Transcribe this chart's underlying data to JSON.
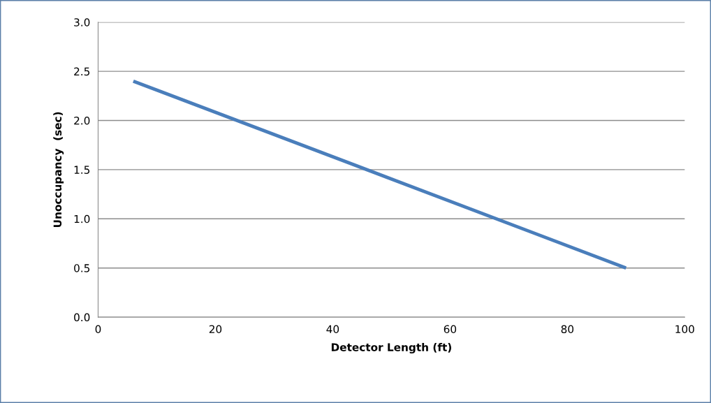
{
  "chart_data": {
    "type": "line",
    "xlabel": "Detector Length (ft)",
    "ylabel": "Unoccupancy  (sec)",
    "x": [
      6,
      90
    ],
    "series": [
      {
        "color": "#4a7ebb",
        "values": [
          2.4,
          0.5
        ]
      }
    ],
    "xlim": [
      0,
      100
    ],
    "xticks": [
      0,
      20,
      40,
      60,
      80,
      100
    ],
    "ylim": [
      0,
      3
    ],
    "yticks": [
      {
        "value": 0,
        "label": "0.0"
      },
      {
        "value": 0.5,
        "label": "0.5"
      },
      {
        "value": 1,
        "label": "1.0"
      },
      {
        "value": 1.5,
        "label": "1.5"
      },
      {
        "value": 2,
        "label": "2.0"
      },
      {
        "value": 2.5,
        "label": "2.5"
      },
      {
        "value": 3,
        "label": "3.0"
      }
    ],
    "grid": "y",
    "marker": "none",
    "line_style": "solid",
    "legend": false
  }
}
